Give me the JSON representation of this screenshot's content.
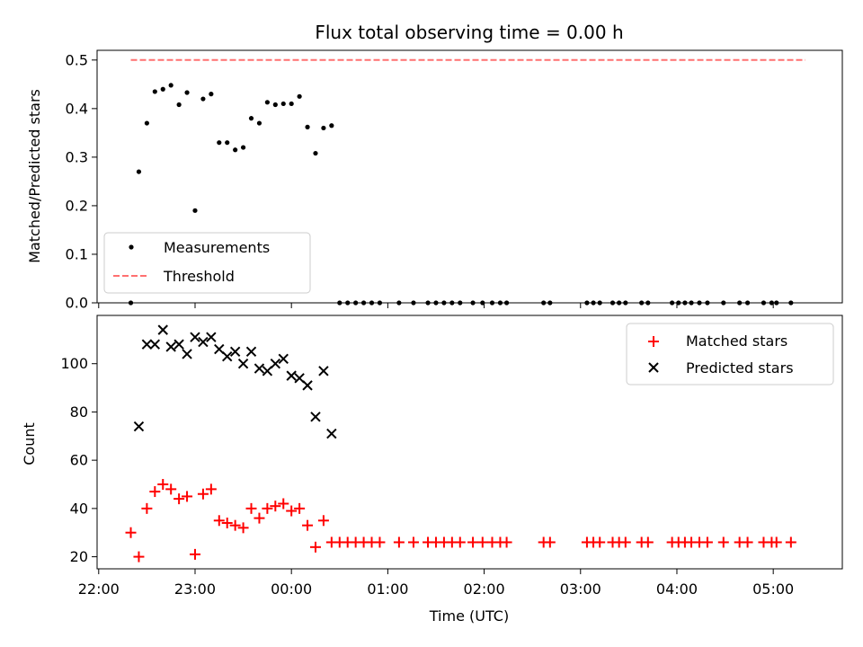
{
  "chart_data": [
    {
      "type": "scatter",
      "title": "Flux total observing time = 0.00 h",
      "xlabel": "",
      "ylabel": "Matched/Predicted stars",
      "ylim": [
        0,
        0.52
      ],
      "yticks": [
        "0.0",
        "0.1",
        "0.2",
        "0.3",
        "0.4",
        "0.5"
      ],
      "xlim": [
        "21:59",
        "05:43"
      ],
      "legend_position": "lower-left",
      "series": [
        {
          "name": "Measurements",
          "kind": "scatter",
          "marker": "dot",
          "color": "#000000",
          "points": [
            [
              "22:20",
              0.0
            ],
            [
              "22:25",
              0.27
            ],
            [
              "22:30",
              0.37
            ],
            [
              "22:35",
              0.435
            ],
            [
              "22:40",
              0.44
            ],
            [
              "22:45",
              0.448
            ],
            [
              "22:50",
              0.408
            ],
            [
              "22:55",
              0.433
            ],
            [
              "23:00",
              0.19
            ],
            [
              "23:05",
              0.42
            ],
            [
              "23:10",
              0.43
            ],
            [
              "23:15",
              0.33
            ],
            [
              "23:20",
              0.33
            ],
            [
              "23:25",
              0.315
            ],
            [
              "23:30",
              0.32
            ],
            [
              "23:35",
              0.38
            ],
            [
              "23:40",
              0.37
            ],
            [
              "23:45",
              0.413
            ],
            [
              "23:50",
              0.408
            ],
            [
              "23:55",
              0.41
            ],
            [
              "00:00",
              0.41
            ],
            [
              "00:05",
              0.425
            ],
            [
              "00:10",
              0.362
            ],
            [
              "00:15",
              0.308
            ],
            [
              "00:20",
              0.36
            ],
            [
              "00:25",
              0.365
            ],
            [
              "00:30",
              0.0
            ],
            [
              "00:35",
              0.0
            ],
            [
              "00:40",
              0.0
            ],
            [
              "00:45",
              0.0
            ],
            [
              "00:50",
              0.0
            ],
            [
              "00:55",
              0.0
            ],
            [
              "01:07",
              0.0
            ],
            [
              "01:16",
              0.0
            ],
            [
              "01:25",
              0.0
            ],
            [
              "01:30",
              0.0
            ],
            [
              "01:35",
              0.0
            ],
            [
              "01:40",
              0.0
            ],
            [
              "01:45",
              0.0
            ],
            [
              "01:53",
              0.0
            ],
            [
              "01:59",
              0.0
            ],
            [
              "02:05",
              0.0
            ],
            [
              "02:10",
              0.0
            ],
            [
              "02:14",
              0.0
            ],
            [
              "02:37",
              0.0
            ],
            [
              "02:41",
              0.0
            ],
            [
              "03:04",
              0.0
            ],
            [
              "03:08",
              0.0
            ],
            [
              "03:12",
              0.0
            ],
            [
              "03:20",
              0.0
            ],
            [
              "03:24",
              0.0
            ],
            [
              "03:28",
              0.0
            ],
            [
              "03:38",
              0.0
            ],
            [
              "03:42",
              0.0
            ],
            [
              "03:57",
              0.0
            ],
            [
              "04:01",
              0.0
            ],
            [
              "04:05",
              0.0
            ],
            [
              "04:09",
              0.0
            ],
            [
              "04:14",
              0.0
            ],
            [
              "04:19",
              0.0
            ],
            [
              "04:29",
              0.0
            ],
            [
              "04:39",
              0.0
            ],
            [
              "04:44",
              0.0
            ],
            [
              "04:54",
              0.0
            ],
            [
              "04:59",
              0.0
            ],
            [
              "05:02",
              0.0
            ],
            [
              "05:11",
              0.0
            ]
          ]
        },
        {
          "name": "Threshold",
          "kind": "line",
          "style": "dashed",
          "color": "#ff7070",
          "points": [
            [
              "22:20",
              0.5
            ],
            [
              "05:20",
              0.5
            ]
          ]
        }
      ]
    },
    {
      "type": "scatter",
      "title": "",
      "xlabel": "Time (UTC)",
      "ylabel": "Count",
      "ylim": [
        15,
        120
      ],
      "yticks": [
        "20",
        "40",
        "60",
        "80",
        "100"
      ],
      "xlim": [
        "21:59",
        "05:43"
      ],
      "xticks": [
        "22:00",
        "23:00",
        "00:00",
        "01:00",
        "02:00",
        "03:00",
        "04:00",
        "05:00"
      ],
      "legend_position": "upper-right",
      "series": [
        {
          "name": "Matched stars",
          "kind": "scatter",
          "marker": "plus",
          "color": "#ff0000",
          "points": [
            [
              "22:20",
              30
            ],
            [
              "22:25",
              20
            ],
            [
              "22:30",
              40
            ],
            [
              "22:35",
              47
            ],
            [
              "22:40",
              50
            ],
            [
              "22:45",
              48
            ],
            [
              "22:50",
              44
            ],
            [
              "22:55",
              45
            ],
            [
              "23:00",
              21
            ],
            [
              "23:05",
              46
            ],
            [
              "23:10",
              48
            ],
            [
              "23:15",
              35
            ],
            [
              "23:20",
              34
            ],
            [
              "23:25",
              33
            ],
            [
              "23:30",
              32
            ],
            [
              "23:35",
              40
            ],
            [
              "23:40",
              36
            ],
            [
              "23:45",
              40
            ],
            [
              "23:50",
              41
            ],
            [
              "23:55",
              42
            ],
            [
              "00:00",
              39
            ],
            [
              "00:05",
              40
            ],
            [
              "00:10",
              33
            ],
            [
              "00:15",
              24
            ],
            [
              "00:20",
              35
            ],
            [
              "00:25",
              26
            ],
            [
              "00:30",
              26
            ],
            [
              "00:35",
              26
            ],
            [
              "00:40",
              26
            ],
            [
              "00:45",
              26
            ],
            [
              "00:50",
              26
            ],
            [
              "00:55",
              26
            ],
            [
              "01:07",
              26
            ],
            [
              "01:16",
              26
            ],
            [
              "01:25",
              26
            ],
            [
              "01:30",
              26
            ],
            [
              "01:35",
              26
            ],
            [
              "01:40",
              26
            ],
            [
              "01:45",
              26
            ],
            [
              "01:53",
              26
            ],
            [
              "01:59",
              26
            ],
            [
              "02:05",
              26
            ],
            [
              "02:10",
              26
            ],
            [
              "02:14",
              26
            ],
            [
              "02:37",
              26
            ],
            [
              "02:41",
              26
            ],
            [
              "03:04",
              26
            ],
            [
              "03:08",
              26
            ],
            [
              "03:12",
              26
            ],
            [
              "03:20",
              26
            ],
            [
              "03:24",
              26
            ],
            [
              "03:28",
              26
            ],
            [
              "03:38",
              26
            ],
            [
              "03:42",
              26
            ],
            [
              "03:57",
              26
            ],
            [
              "04:01",
              26
            ],
            [
              "04:05",
              26
            ],
            [
              "04:09",
              26
            ],
            [
              "04:14",
              26
            ],
            [
              "04:19",
              26
            ],
            [
              "04:29",
              26
            ],
            [
              "04:39",
              26
            ],
            [
              "04:44",
              26
            ],
            [
              "04:54",
              26
            ],
            [
              "04:59",
              26
            ],
            [
              "05:02",
              26
            ],
            [
              "05:11",
              26
            ]
          ]
        },
        {
          "name": "Predicted stars",
          "kind": "scatter",
          "marker": "x",
          "color": "#000000",
          "points": [
            [
              "22:25",
              74
            ],
            [
              "22:30",
              108
            ],
            [
              "22:35",
              108
            ],
            [
              "22:40",
              114
            ],
            [
              "22:45",
              107
            ],
            [
              "22:50",
              108
            ],
            [
              "22:55",
              104
            ],
            [
              "23:00",
              111
            ],
            [
              "23:05",
              109
            ],
            [
              "23:10",
              111
            ],
            [
              "23:15",
              106
            ],
            [
              "23:20",
              103
            ],
            [
              "23:25",
              105
            ],
            [
              "23:30",
              100
            ],
            [
              "23:35",
              105
            ],
            [
              "23:40",
              98
            ],
            [
              "23:45",
              97
            ],
            [
              "23:50",
              100
            ],
            [
              "23:55",
              102
            ],
            [
              "00:00",
              95
            ],
            [
              "00:05",
              94
            ],
            [
              "00:10",
              91
            ],
            [
              "00:15",
              78
            ],
            [
              "00:20",
              97
            ],
            [
              "00:25",
              71
            ]
          ]
        }
      ]
    }
  ]
}
